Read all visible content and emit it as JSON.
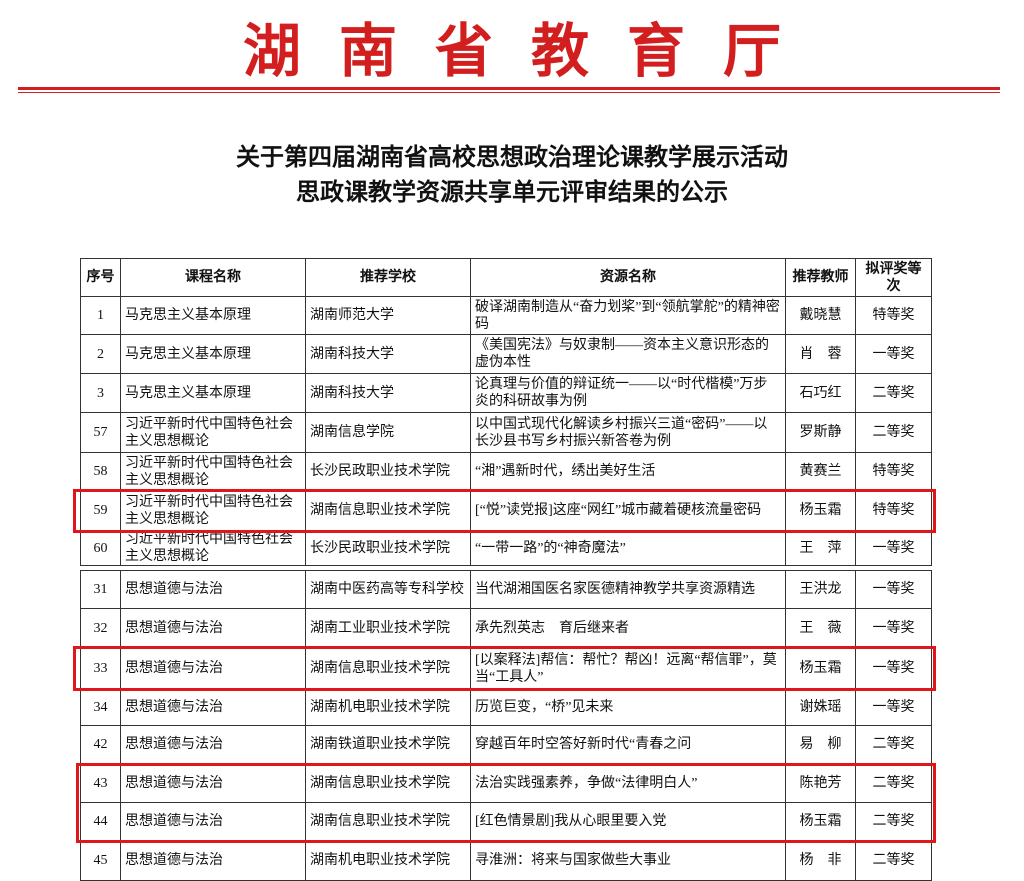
{
  "masthead": "湖南省教育厅",
  "title_line1": "关于第四届湖南省高校思想政治理论课教学展示活动",
  "title_line2": "思政课教学资源共享单元评审结果的公示",
  "colors": {
    "masthead": "#d21e1e",
    "highlight_box": "#e0161b"
  },
  "table": {
    "headers": [
      "序号",
      "课程名称",
      "推荐学校",
      "资源名称",
      "推荐教师",
      "拟评奖等　次"
    ],
    "rows_part1": [
      [
        "1",
        "马克思主义基本原理",
        "湖南师范大学",
        "破译湖南制造从“奋力划桨”到“领航掌舵”的精神密码",
        "戴晓慧",
        "特等奖"
      ],
      [
        "2",
        "马克思主义基本原理",
        "湖南科技大学",
        "《美国宪法》与奴隶制——资本主义意识形态的虚伪本性",
        "肖　蓉",
        "一等奖"
      ],
      [
        "3",
        "马克思主义基本原理",
        "湖南科技大学",
        "论真理与价值的辩证统一——以“时代楷模”万步炎的科研故事为例",
        "石巧红",
        "二等奖"
      ],
      [
        "57",
        "习近平新时代中国特色社会主义思想概论",
        "湖南信息学院",
        "以中国式现代化解读乡村振兴三道“密码”——以长沙县书写乡村振兴新答卷为例",
        "罗斯静",
        "二等奖"
      ],
      [
        "58",
        "习近平新时代中国特色社会主义思想概论",
        "长沙民政职业技术学院",
        "“湘”遇新时代，绣出美好生活",
        "黄赛兰",
        "特等奖"
      ],
      [
        "59",
        "习近平新时代中国特色社会主义思想概论",
        "湖南信息职业技术学院",
        "[“悦”读党报]这座“网红”城市藏着硬核流量密码",
        "杨玉霜",
        "特等奖"
      ],
      [
        "60",
        "习近平新时代中国特色社会主义思想概论",
        "长沙民政职业技术学院",
        "“一带一路”的“神奇魔法”",
        "王　萍",
        "一等奖"
      ]
    ],
    "rows_part2": [
      [
        "31",
        "思想道德与法治",
        "湖南中医药高等专科学校",
        "当代湖湘国医名家医德精神教学共享资源精选",
        "王洪龙",
        "一等奖"
      ],
      [
        "32",
        "思想道德与法治",
        "湖南工业职业技术学院",
        "承先烈英志　育后继来者",
        "王　薇",
        "一等奖"
      ],
      [
        "33",
        "思想道德与法治",
        "湖南信息职业技术学院",
        "[以案释法]帮信：帮忙？帮凶！远离“帮信罪”，莫当“工具人”",
        "杨玉霜",
        "一等奖"
      ],
      [
        "34",
        "思想道德与法治",
        "湖南机电职业技术学院",
        "历览巨变，“桥”见未来",
        "谢姝瑶",
        "一等奖"
      ],
      [
        "42",
        "思想道德与法治",
        "湖南铁道职业技术学院",
        "穿越百年时空答好新时代“青春之问",
        "易　柳",
        "二等奖"
      ],
      [
        "43",
        "思想道德与法治",
        "湖南信息职业技术学院",
        "法治实践强素养，争做“法律明白人”",
        "陈艳芳",
        "二等奖"
      ],
      [
        "44",
        "思想道德与法治",
        "湖南信息职业技术学院",
        "[红色情景剧]我从心眼里要入党",
        "杨玉霜",
        "二等奖"
      ],
      [
        "45",
        "思想道德与法治",
        "湖南机电职业技术学院",
        "寻淮洲：将来与国家做些大事业",
        "杨　非",
        "二等奖"
      ]
    ]
  }
}
